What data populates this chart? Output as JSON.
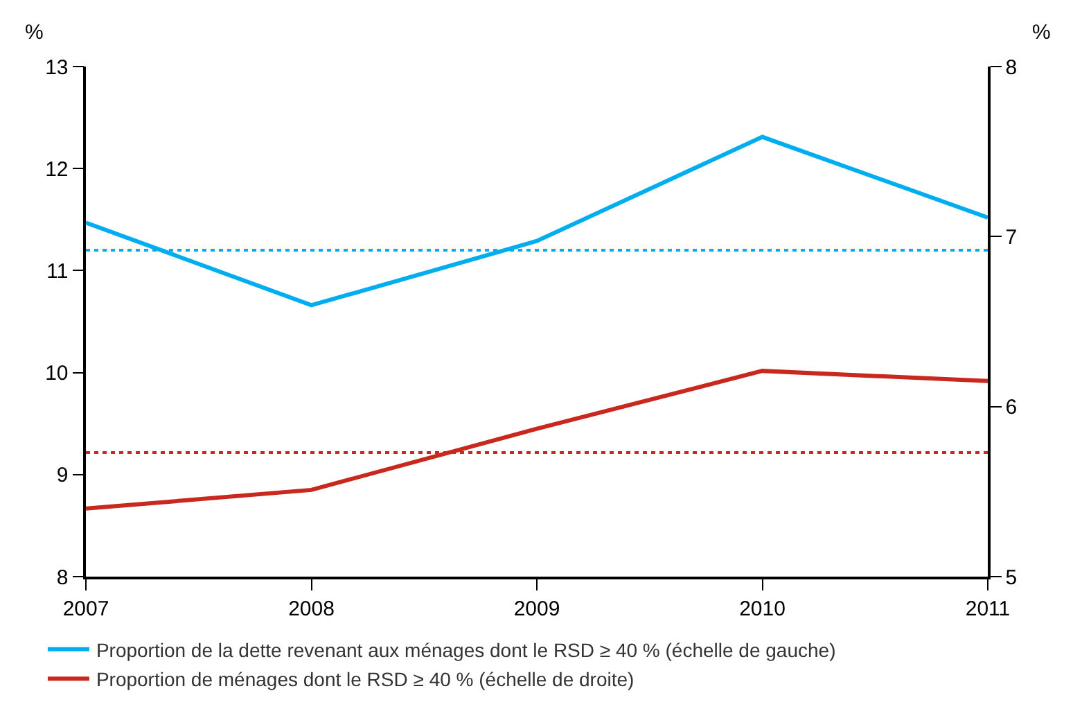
{
  "chart_data": {
    "type": "line",
    "ylabel": "%",
    "y2label": "%",
    "x": [
      2007,
      2008,
      2009,
      2010,
      2011
    ],
    "series": [
      {
        "name": "Proportion de la dette revenant aux ménages dont le RSD ≥ 40 % (échelle de gauche)",
        "color": "#00aeef",
        "values": [
          11.47,
          10.66,
          11.29,
          12.31,
          11.52
        ]
      },
      {
        "name": "Proportion de ménages dont le RSD ≥ 40 % (échelle de droite)",
        "color": "#c8281e",
        "values": [
          5.4,
          5.51,
          5.87,
          6.21,
          6.15
        ],
        "axis": "y2"
      }
    ],
    "ref_lines": [
      {
        "axis": "y",
        "value": 11.2,
        "color": "#00aeef",
        "line_style": "dotted"
      },
      {
        "axis": "y2",
        "value": 5.73,
        "color": "#c8281e",
        "line_style": "dotted"
      }
    ],
    "xlim": [
      2007,
      2011
    ],
    "xticks": [
      2007,
      2008,
      2009,
      2010,
      2011
    ],
    "ylim": [
      8,
      13
    ],
    "yticks": [
      8,
      9,
      10,
      11,
      12,
      13
    ],
    "y2lim": [
      5,
      8
    ],
    "y2ticks": [
      5,
      6,
      7,
      8
    ],
    "legend": "bottom",
    "marker": "none",
    "line_style": "solid"
  }
}
